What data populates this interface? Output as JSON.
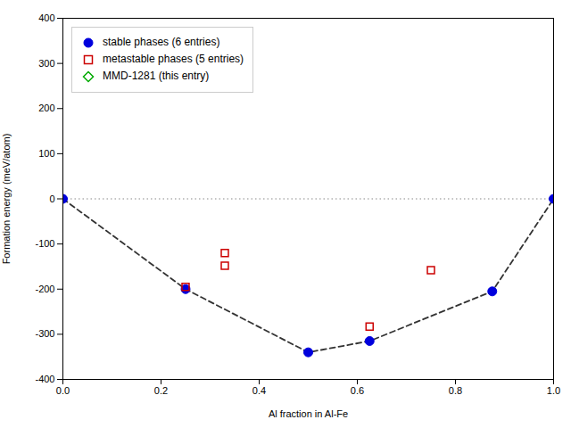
{
  "chart_data": {
    "type": "scatter",
    "xlabel": "Al fraction in Al-Fe",
    "ylabel": "Formation energy (meV/atom)",
    "xlim": [
      0.0,
      1.0
    ],
    "xticks": [
      {
        "value": 0.0,
        "label": "0.0"
      },
      0.2,
      0.4,
      0.6,
      0.8,
      {
        "value": 1.0,
        "label": "1.0"
      }
    ],
    "ylim": [
      -400,
      400
    ],
    "yticks": [
      -400,
      -300,
      -200,
      -100,
      0,
      100,
      200,
      300,
      400
    ],
    "grid": false,
    "legend": "upper left",
    "series": [
      {
        "type": "hline",
        "values": [
          0
        ],
        "color": "#888888",
        "line_style": "dotted"
      },
      {
        "type": "line",
        "x": [
          0.0,
          0.25,
          0.5,
          0.625,
          0.875,
          1.0
        ],
        "y": [
          0.0,
          -200.0,
          -340.0,
          -315.0,
          -205.0,
          0.0
        ],
        "color": "#333333",
        "line_style": "dashed"
      },
      {
        "type": "scatter",
        "name": "stable phases (6 entries)",
        "x": [
          0.0,
          0.25,
          0.5,
          0.625,
          0.875,
          1.0
        ],
        "y": [
          0.0,
          -200.0,
          -340.0,
          -315.0,
          -205.0,
          0.0
        ],
        "color": "#0000dd",
        "marker": "circle"
      },
      {
        "type": "scatter",
        "name": "metastable phases (5 entries)",
        "x": [
          0.25,
          0.33,
          0.33,
          0.625,
          0.75
        ],
        "y": [
          -195.0,
          -120.0,
          -148.0,
          -283.0,
          -158.0
        ],
        "color": "#cc0000",
        "marker": "open_square"
      },
      {
        "type": "scatter",
        "name": "MMD-1281 (this entry)",
        "x": [],
        "y": [],
        "color": "#00aa00",
        "marker": "open_diamond"
      }
    ]
  }
}
